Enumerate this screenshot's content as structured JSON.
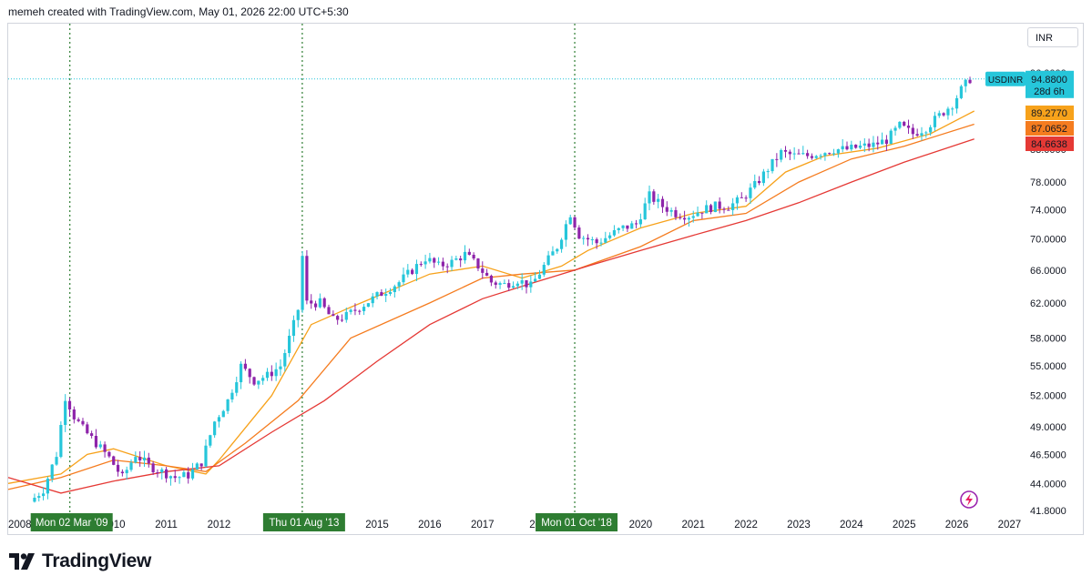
{
  "header": {
    "caption": "memeh created with TradingView.com, May 01, 2026 22:00 UTC+5:30"
  },
  "currency_button": {
    "label": "INR"
  },
  "footer": {
    "brand": "TradingView"
  },
  "colors": {
    "up": "#26c6da",
    "down": "#8e24aa",
    "ema_fast": "#f7a21b",
    "ema_mid": "#f57c1f",
    "ema_slow": "#e53935",
    "marker_green": "#2e7d32"
  },
  "icons": [
    "tradingview-logo-icon",
    "lightning-bolt-icon"
  ],
  "chart_data": {
    "type": "line",
    "symbol": "USDINR",
    "timeframe_display": "monthly candles, log scale",
    "scale": "log",
    "ylim": [
      41.8,
      96.0
    ],
    "xlim": [
      2008.0,
      2027.2
    ],
    "y_ticks": [
      "41.8000",
      "44.0000",
      "46.5000",
      "49.0000",
      "52.0000",
      "55.0000",
      "58.0000",
      "62.0000",
      "66.0000",
      "70.0000",
      "74.0000",
      "78.0000",
      "83.0000",
      "89.0000",
      "96.0000"
    ],
    "x_ticks": [
      "2008",
      "2010",
      "2011",
      "2012",
      "2015",
      "2016",
      "2017",
      "20",
      "2020",
      "2021",
      "2022",
      "2023",
      "2024",
      "2025",
      "2026",
      "2027"
    ],
    "last_price": {
      "label": "USDINR",
      "value": "94.8800",
      "countdown": "28d 6h",
      "y": 94.88
    },
    "ma_labels": [
      {
        "value": "89.2770",
        "y": 89.277,
        "color": "#f7a21b"
      },
      {
        "value": "87.0652",
        "y": 87.0652,
        "color": "#f57c1f"
      },
      {
        "value": "84.6638",
        "y": 84.6638,
        "color": "#e53935"
      }
    ],
    "markers": [
      {
        "label": "Mon 02 Mar '09",
        "x": 2009.17
      },
      {
        "label": "Thu 01 Aug '13",
        "x": 2013.58
      },
      {
        "label": "Mon 01 Oct '18",
        "x": 2018.75
      }
    ],
    "price_path": [
      [
        2008.5,
        42.5
      ],
      [
        2008.75,
        43.5
      ],
      [
        2009.0,
        46.5
      ],
      [
        2009.17,
        52.0
      ],
      [
        2009.33,
        50.0
      ],
      [
        2009.5,
        48.8
      ],
      [
        2009.75,
        47.5
      ],
      [
        2010.0,
        46.2
      ],
      [
        2010.25,
        44.5
      ],
      [
        2010.5,
        46.5
      ],
      [
        2010.75,
        45.5
      ],
      [
        2011.0,
        45.0
      ],
      [
        2011.25,
        44.5
      ],
      [
        2011.5,
        44.7
      ],
      [
        2011.75,
        45.8
      ],
      [
        2012.0,
        49.5
      ],
      [
        2012.25,
        51.5
      ],
      [
        2012.5,
        55.0
      ],
      [
        2012.75,
        53.5
      ],
      [
        2013.0,
        54.0
      ],
      [
        2013.25,
        55.0
      ],
      [
        2013.58,
        61.0
      ],
      [
        2013.67,
        68.0
      ],
      [
        2013.75,
        62.0
      ],
      [
        2014.0,
        62.0
      ],
      [
        2014.25,
        60.0
      ],
      [
        2014.5,
        60.5
      ],
      [
        2014.75,
        61.5
      ],
      [
        2015.0,
        62.5
      ],
      [
        2015.25,
        63.5
      ],
      [
        2015.5,
        64.5
      ],
      [
        2015.75,
        66.0
      ],
      [
        2016.0,
        67.5
      ],
      [
        2016.25,
        66.5
      ],
      [
        2016.5,
        67.0
      ],
      [
        2016.75,
        68.0
      ],
      [
        2017.0,
        66.5
      ],
      [
        2017.25,
        64.5
      ],
      [
        2017.5,
        64.2
      ],
      [
        2017.75,
        64.8
      ],
      [
        2018.0,
        64.0
      ],
      [
        2018.25,
        66.5
      ],
      [
        2018.5,
        69.0
      ],
      [
        2018.75,
        73.5
      ],
      [
        2018.92,
        70.5
      ],
      [
        2019.25,
        69.5
      ],
      [
        2019.5,
        70.5
      ],
      [
        2019.75,
        71.5
      ],
      [
        2020.0,
        72.0
      ],
      [
        2020.25,
        76.0
      ],
      [
        2020.5,
        74.5
      ],
      [
        2020.75,
        73.5
      ],
      [
        2021.0,
        73.2
      ],
      [
        2021.25,
        74.0
      ],
      [
        2021.5,
        74.5
      ],
      [
        2021.75,
        74.5
      ],
      [
        2022.0,
        75.5
      ],
      [
        2022.25,
        77.5
      ],
      [
        2022.5,
        80.0
      ],
      [
        2022.75,
        82.5
      ],
      [
        2023.0,
        82.0
      ],
      [
        2023.25,
        82.0
      ],
      [
        2023.5,
        82.5
      ],
      [
        2023.75,
        83.0
      ],
      [
        2024.0,
        83.0
      ],
      [
        2024.25,
        83.4
      ],
      [
        2024.5,
        83.7
      ],
      [
        2024.75,
        84.5
      ],
      [
        2025.0,
        86.8
      ],
      [
        2025.25,
        85.5
      ],
      [
        2025.5,
        86.5
      ],
      [
        2025.75,
        88.5
      ],
      [
        2026.0,
        90.5
      ],
      [
        2026.17,
        93.0
      ],
      [
        2026.33,
        94.88
      ]
    ],
    "series": [
      {
        "values": [
          [
            2008.0,
            44.0
          ],
          [
            2009.0,
            44.8
          ],
          [
            2009.5,
            46.5
          ],
          [
            2010.0,
            47.0
          ],
          [
            2011.0,
            45.5
          ],
          [
            2011.75,
            44.8
          ],
          [
            2012.0,
            46.0
          ],
          [
            2013.0,
            52.0
          ],
          [
            2013.75,
            59.5
          ],
          [
            2014.5,
            61.5
          ],
          [
            2016.0,
            65.5
          ],
          [
            2017.0,
            66.5
          ],
          [
            2017.75,
            65.0
          ],
          [
            2018.5,
            66.5
          ],
          [
            2019.0,
            68.5
          ],
          [
            2020.0,
            71.5
          ],
          [
            2021.0,
            73.5
          ],
          [
            2022.0,
            74.5
          ],
          [
            2022.75,
            79.5
          ],
          [
            2023.5,
            82.0
          ],
          [
            2024.5,
            83.2
          ],
          [
            2025.5,
            85.5
          ],
          [
            2026.33,
            89.277
          ]
        ]
      },
      {
        "values": [
          [
            2008.0,
            43.5
          ],
          [
            2009.0,
            44.5
          ],
          [
            2010.0,
            46.0
          ],
          [
            2011.0,
            45.5
          ],
          [
            2011.75,
            45.0
          ],
          [
            2012.5,
            47.5
          ],
          [
            2013.5,
            51.5
          ],
          [
            2014.5,
            58.0
          ],
          [
            2016.0,
            62.0
          ],
          [
            2017.0,
            65.0
          ],
          [
            2017.75,
            65.5
          ],
          [
            2018.75,
            66.0
          ],
          [
            2020.0,
            69.0
          ],
          [
            2021.0,
            72.5
          ],
          [
            2022.0,
            73.5
          ],
          [
            2023.0,
            78.0
          ],
          [
            2024.0,
            81.5
          ],
          [
            2025.0,
            83.5
          ],
          [
            2026.33,
            87.0652
          ]
        ]
      },
      {
        "values": [
          [
            2008.0,
            44.5
          ],
          [
            2009.0,
            43.2
          ],
          [
            2010.0,
            44.2
          ],
          [
            2011.0,
            45.0
          ],
          [
            2012.0,
            45.5
          ],
          [
            2013.0,
            48.5
          ],
          [
            2014.0,
            51.5
          ],
          [
            2015.0,
            55.5
          ],
          [
            2016.0,
            59.5
          ],
          [
            2017.0,
            62.5
          ],
          [
            2018.0,
            64.5
          ],
          [
            2019.0,
            66.5
          ],
          [
            2020.0,
            68.5
          ],
          [
            2021.0,
            70.5
          ],
          [
            2022.0,
            72.5
          ],
          [
            2023.0,
            75.0
          ],
          [
            2024.0,
            78.0
          ],
          [
            2025.0,
            81.0
          ],
          [
            2026.33,
            84.6638
          ]
        ]
      }
    ]
  }
}
